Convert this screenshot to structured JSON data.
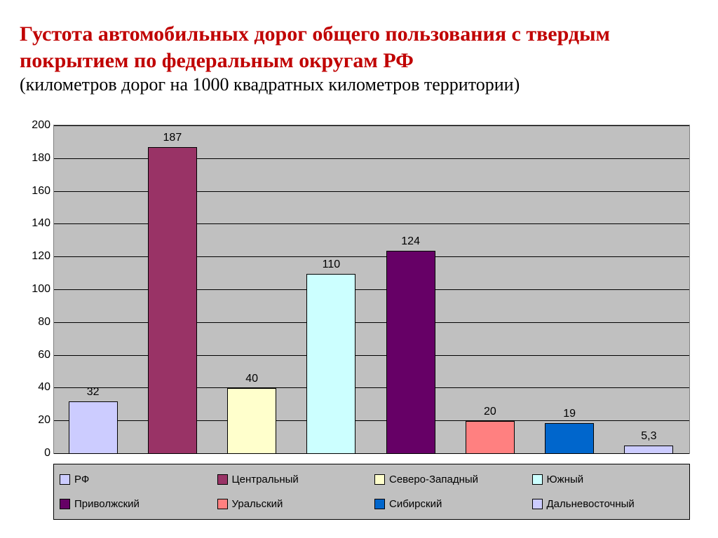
{
  "title": {
    "main": "Густота автомобильных дорог общего пользования с твердым покрытием по федеральным округам РФ",
    "sub": "(километров дорог на 1000 квадратных километров территории)",
    "main_color": "#c00000",
    "sub_color": "#000000",
    "main_fontsize": 30,
    "sub_fontsize": 26
  },
  "chart": {
    "type": "bar",
    "plot_background": "#c0c0c0",
    "grid_color": "#000000",
    "border_color": "#808080",
    "ylim": [
      0,
      200
    ],
    "ytick_step": 20,
    "yticks": [
      0,
      20,
      40,
      60,
      80,
      100,
      120,
      140,
      160,
      180,
      200
    ],
    "tick_fontsize": 16,
    "label_fontsize": 16,
    "tick_font": "Arial",
    "bar_width": 0.62,
    "series": [
      {
        "name": "РФ",
        "value": 32,
        "label": "32",
        "color": "#ccccff"
      },
      {
        "name": "Центральный",
        "value": 187,
        "label": "187",
        "color": "#993366"
      },
      {
        "name": "Северо-Западный",
        "value": 40,
        "label": "40",
        "color": "#ffffcc"
      },
      {
        "name": "Южный",
        "value": 110,
        "label": "110",
        "color": "#ccffff"
      },
      {
        "name": "Приволжский",
        "value": 124,
        "label": "124",
        "color": "#660066"
      },
      {
        "name": "Уральский",
        "value": 20,
        "label": "20",
        "color": "#ff8080"
      },
      {
        "name": "Сибирский",
        "value": 19,
        "label": "19",
        "color": "#0066cc"
      },
      {
        "name": "Дальневосточный",
        "value": 5.3,
        "label": "5,3",
        "color": "#ccccff"
      }
    ],
    "legend": {
      "background": "#c0c0c0",
      "border_color": "#000000",
      "fontsize": 15,
      "columns": 4,
      "rows": 2
    }
  }
}
